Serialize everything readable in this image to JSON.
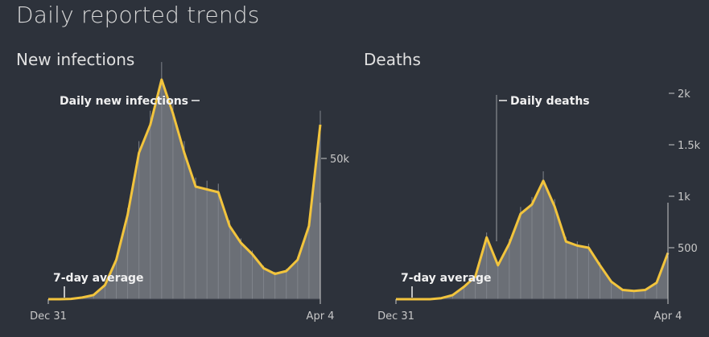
{
  "page": {
    "title": "Daily reported trends"
  },
  "colors": {
    "background": "#2d323b",
    "bars": "#6b6f76",
    "average_line": "#f2c43d",
    "text": "#e6e6e6"
  },
  "chart_data": [
    {
      "type": "area",
      "title": "New infections",
      "series": [
        {
          "name": "Daily new infections",
          "kind": "bars"
        },
        {
          "name": "7-day average",
          "kind": "line"
        }
      ],
      "x_ticks": [
        "Dec 31",
        "Apr 4"
      ],
      "y_ticks": [
        {
          "value": 50000,
          "label": "50k"
        }
      ],
      "ylim": [
        0,
        80000
      ],
      "annotations": {
        "daily": "Daily new infections",
        "average": "7-day average"
      },
      "x": [
        0,
        4,
        8,
        12,
        16,
        20,
        24,
        28,
        32,
        36,
        40,
        44,
        48,
        52,
        56,
        60,
        64,
        68,
        72,
        76,
        80,
        84,
        88,
        92,
        96
      ],
      "values": [
        0,
        0,
        100,
        600,
        1500,
        5000,
        14000,
        30000,
        52000,
        62000,
        78000,
        66000,
        52000,
        40000,
        39000,
        38000,
        26000,
        20000,
        16000,
        11000,
        9000,
        10000,
        14000,
        26000,
        62000
      ]
    },
    {
      "type": "area",
      "title": "Deaths",
      "series": [
        {
          "name": "Daily deaths",
          "kind": "bars"
        },
        {
          "name": "7-day average",
          "kind": "line"
        }
      ],
      "x_ticks": [
        "Dec 31",
        "Apr 4"
      ],
      "y_ticks": [
        {
          "value": 500,
          "label": "500"
        },
        {
          "value": 1000,
          "label": "1k"
        },
        {
          "value": 1500,
          "label": "1.5k"
        },
        {
          "value": 2000,
          "label": "2k"
        }
      ],
      "ylim": [
        0,
        2000
      ],
      "annotations": {
        "daily": "Daily deaths",
        "average": "7-day average"
      },
      "x": [
        0,
        4,
        8,
        12,
        16,
        20,
        24,
        28,
        32,
        36,
        40,
        44,
        48,
        52,
        56,
        60,
        64,
        68,
        72,
        76,
        80,
        84,
        88,
        92,
        96
      ],
      "values": [
        0,
        0,
        0,
        0,
        10,
        40,
        120,
        220,
        600,
        330,
        540,
        830,
        920,
        1150,
        900,
        560,
        520,
        500,
        330,
        170,
        90,
        80,
        90,
        160,
        450
      ]
    }
  ]
}
